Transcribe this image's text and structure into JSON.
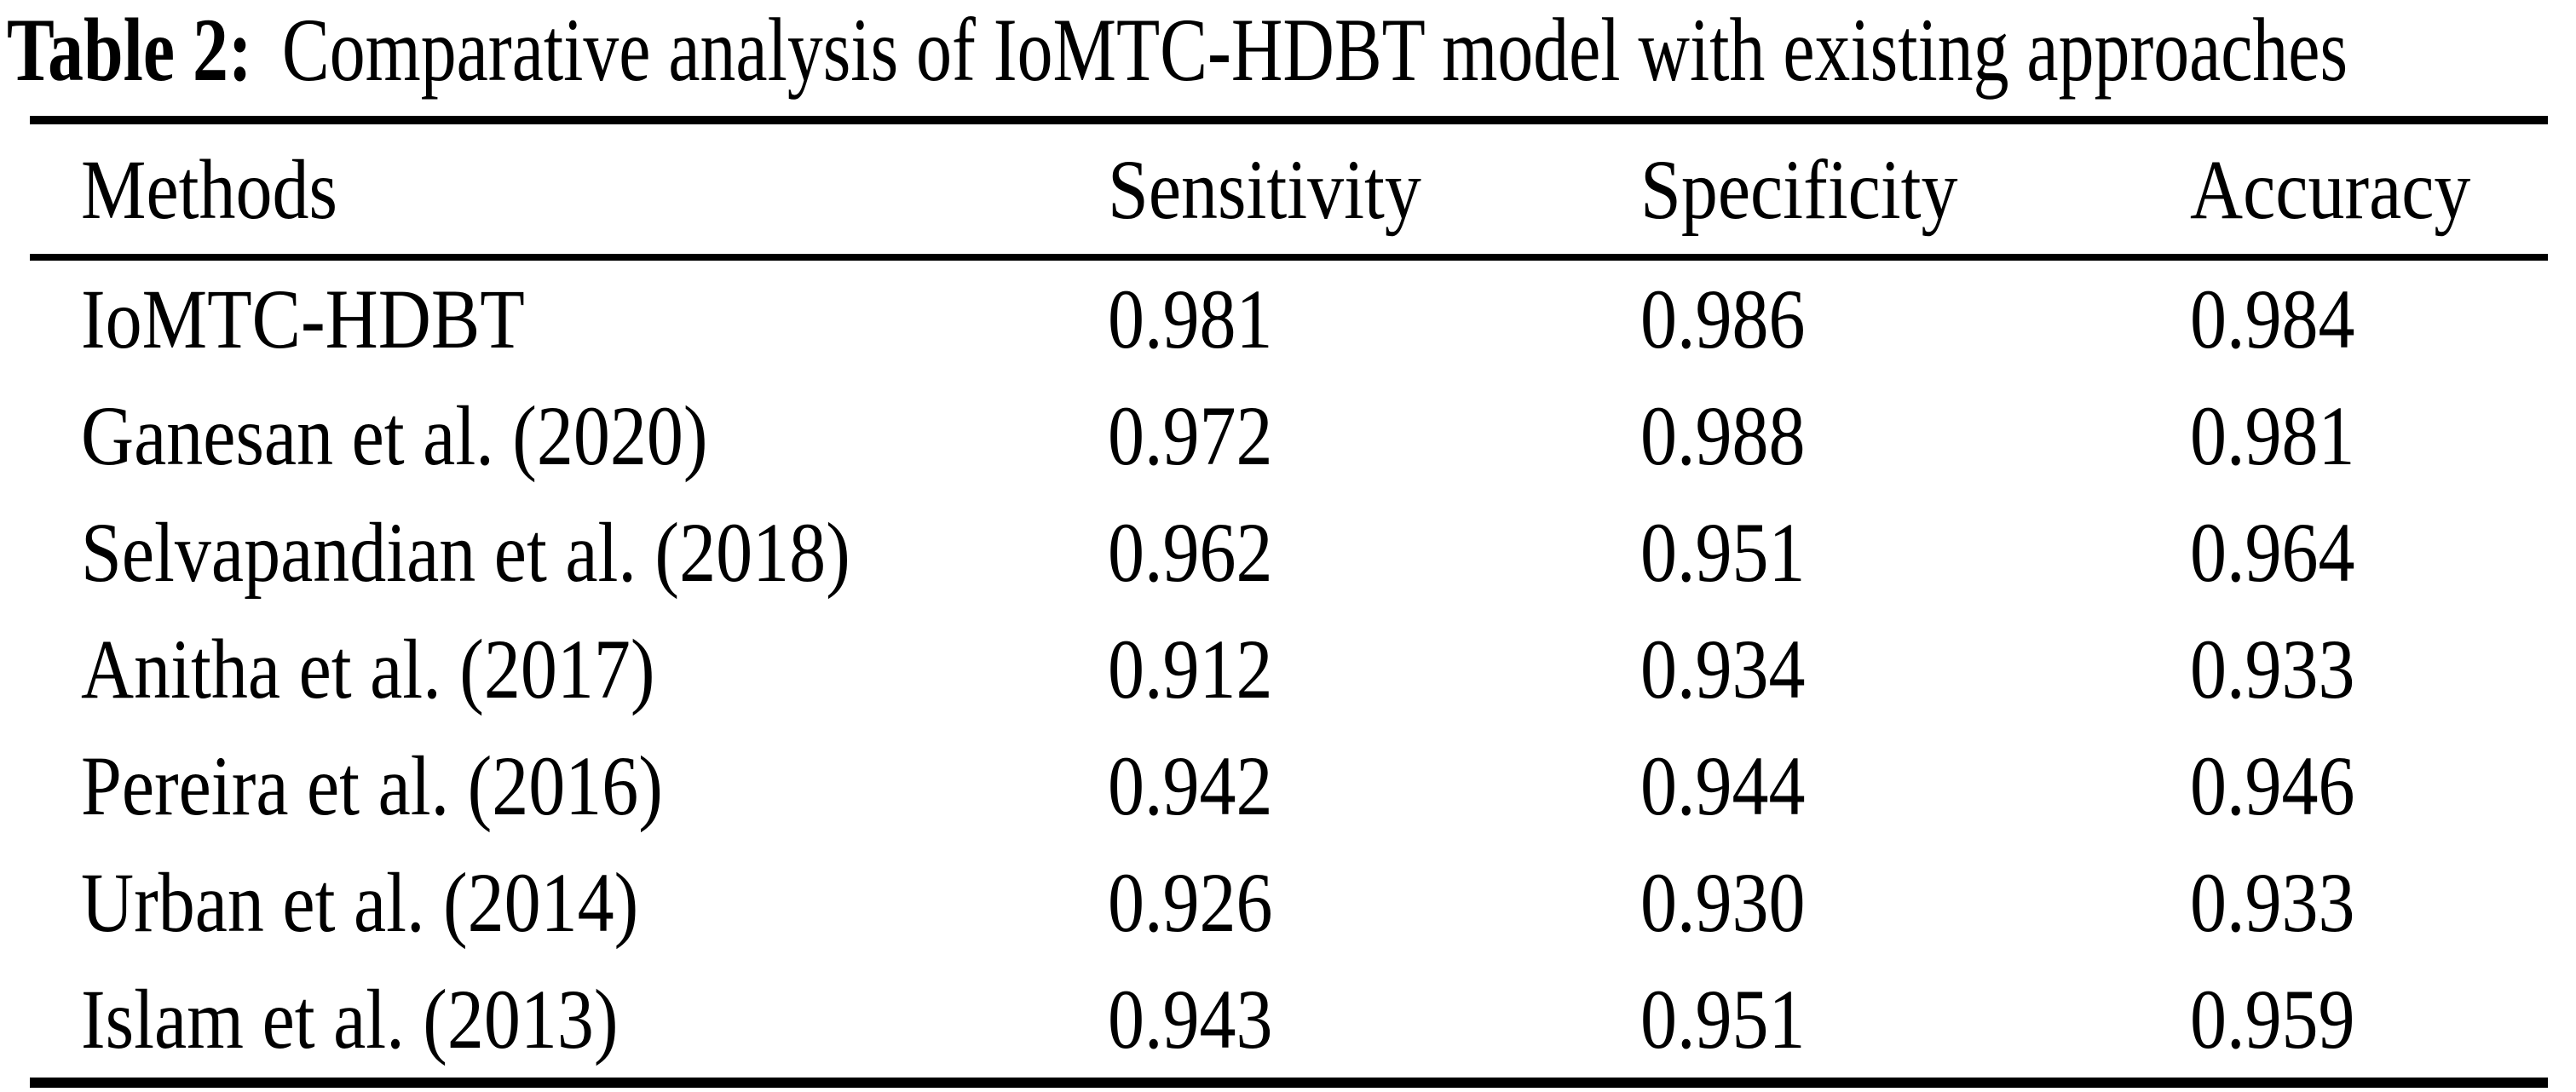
{
  "page": {
    "title_label": "Table 2:",
    "title_text": "Comparative analysis of IoMTC-HDBT model with existing approaches"
  },
  "table": {
    "columns": [
      "Methods",
      "Sensitivity",
      "Specificity",
      "Accuracy"
    ],
    "rows": [
      {
        "method": "IoMTC-HDBT",
        "sensitivity": "0.981",
        "specificity": "0.986",
        "accuracy": "0.984"
      },
      {
        "method": "Ganesan et al. (2020)",
        "sensitivity": "0.972",
        "specificity": "0.988",
        "accuracy": "0.981"
      },
      {
        "method": "Selvapandian et al. (2018)",
        "sensitivity": "0.962",
        "specificity": "0.951",
        "accuracy": "0.964"
      },
      {
        "method": "Anitha et al. (2017)",
        "sensitivity": "0.912",
        "specificity": "0.934",
        "accuracy": "0.933"
      },
      {
        "method": "Pereira et al. (2016)",
        "sensitivity": "0.942",
        "specificity": "0.944",
        "accuracy": "0.946"
      },
      {
        "method": "Urban et al. (2014)",
        "sensitivity": "0.926",
        "specificity": "0.930",
        "accuracy": "0.933"
      },
      {
        "method": "Islam et al. (2013)",
        "sensitivity": "0.943",
        "specificity": "0.951",
        "accuracy": "0.959"
      }
    ]
  },
  "chart_data": {
    "type": "table",
    "title": "Table 2: Comparative analysis of IoMTC-HDBT model with existing approaches",
    "columns": [
      "Methods",
      "Sensitivity",
      "Specificity",
      "Accuracy"
    ],
    "series": [
      {
        "name": "Sensitivity",
        "values": [
          0.981,
          0.972,
          0.962,
          0.912,
          0.942,
          0.926,
          0.943
        ]
      },
      {
        "name": "Specificity",
        "values": [
          0.986,
          0.988,
          0.951,
          0.934,
          0.944,
          0.93,
          0.951
        ]
      },
      {
        "name": "Accuracy",
        "values": [
          0.984,
          0.981,
          0.964,
          0.933,
          0.946,
          0.933,
          0.959
        ]
      }
    ],
    "categories": [
      "IoMTC-HDBT",
      "Ganesan et al. (2020)",
      "Selvapandian et al. (2018)",
      "Anitha et al. (2017)",
      "Pereira et al. (2016)",
      "Urban et al. (2014)",
      "Islam et al. (2013)"
    ]
  },
  "colors": {
    "text": "#000000",
    "background": "#ffffff",
    "rule": "#000000"
  }
}
